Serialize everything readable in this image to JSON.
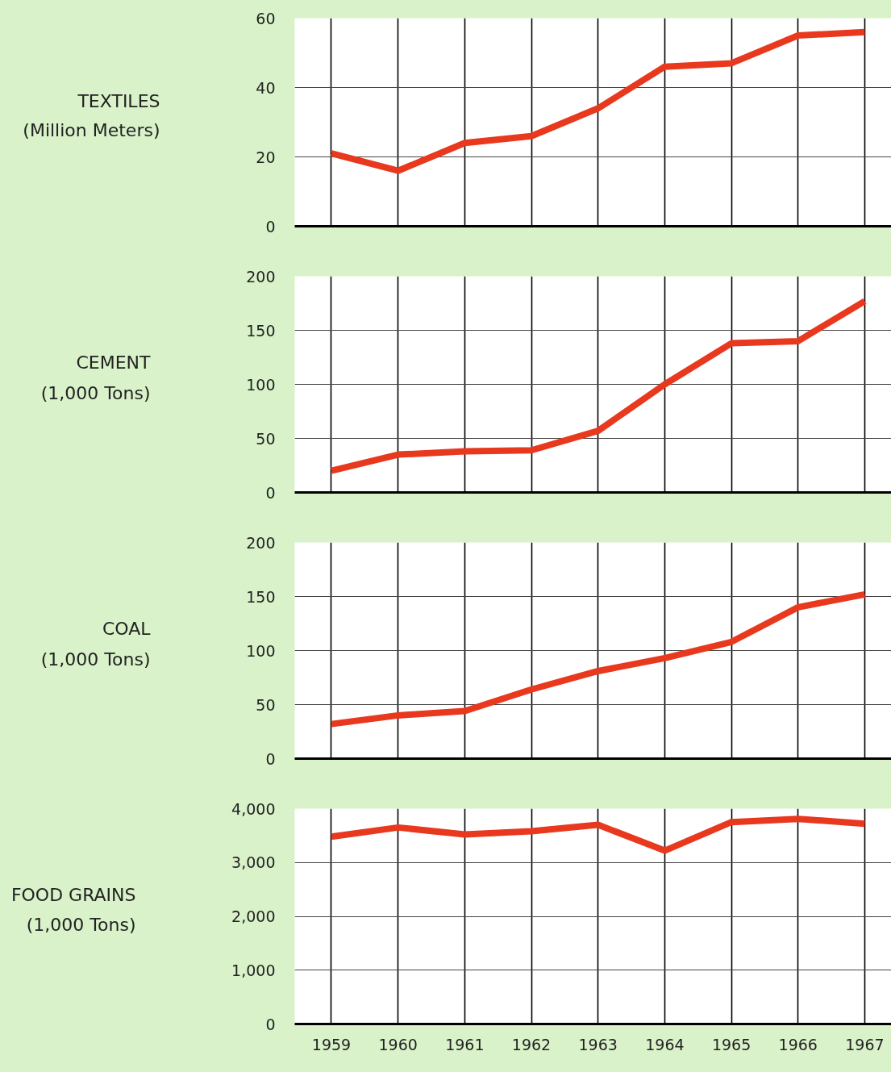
{
  "chart_data": [
    {
      "type": "line",
      "title": "TEXTILES",
      "subtitle": "(Million Meters)",
      "categories": [
        "1959",
        "1960",
        "1961",
        "1962",
        "1963",
        "1964",
        "1965",
        "1966",
        "1967"
      ],
      "series": [
        {
          "color": "#e8391f",
          "values": [
            21,
            16,
            24,
            26,
            34,
            46,
            47,
            55,
            56
          ]
        }
      ],
      "ylim": [
        0,
        60
      ],
      "yticks": [
        0,
        20,
        40,
        60
      ],
      "grid": true,
      "marker": "none",
      "tick_labels": "y"
    },
    {
      "type": "line",
      "title": "CEMENT",
      "subtitle": "(1,000 Tons)",
      "categories": [
        "1959",
        "1960",
        "1961",
        "1962",
        "1963",
        "1964",
        "1965",
        "1966",
        "1967"
      ],
      "series": [
        {
          "color": "#e8391f",
          "values": [
            20,
            35,
            38,
            39,
            57,
            100,
            138,
            140,
            177
          ]
        }
      ],
      "ylim": [
        0,
        200
      ],
      "yticks": [
        0,
        50,
        100,
        150,
        200
      ],
      "grid": true,
      "marker": "none",
      "tick_labels": "y"
    },
    {
      "type": "line",
      "title": "COAL",
      "subtitle": "(1,000 Tons)",
      "categories": [
        "1959",
        "1960",
        "1961",
        "1962",
        "1963",
        "1964",
        "1965",
        "1966",
        "1967"
      ],
      "series": [
        {
          "color": "#e8391f",
          "values": [
            32,
            40,
            44,
            64,
            81,
            93,
            108,
            140,
            152
          ]
        }
      ],
      "ylim": [
        0,
        200
      ],
      "yticks": [
        0,
        50,
        100,
        150,
        200
      ],
      "grid": true,
      "marker": "none",
      "tick_labels": "y"
    },
    {
      "type": "line",
      "title": "FOOD GRAINS",
      "subtitle": "(1,000 Tons)",
      "categories": [
        "1959",
        "1960",
        "1961",
        "1962",
        "1963",
        "1964",
        "1965",
        "1966",
        "1967"
      ],
      "series": [
        {
          "color": "#e8391f",
          "values": [
            3480,
            3650,
            3520,
            3580,
            3700,
            3220,
            3750,
            3810,
            3720
          ]
        }
      ],
      "ylim": [
        0,
        4000
      ],
      "yticks": [
        0,
        {
          "value": 1000,
          "label": "1,000"
        },
        {
          "value": 2000,
          "label": "2,000"
        },
        {
          "value": 3000,
          "label": "3,000"
        },
        {
          "value": 4000,
          "label": "4,000"
        }
      ],
      "grid": true,
      "marker": "none"
    }
  ]
}
